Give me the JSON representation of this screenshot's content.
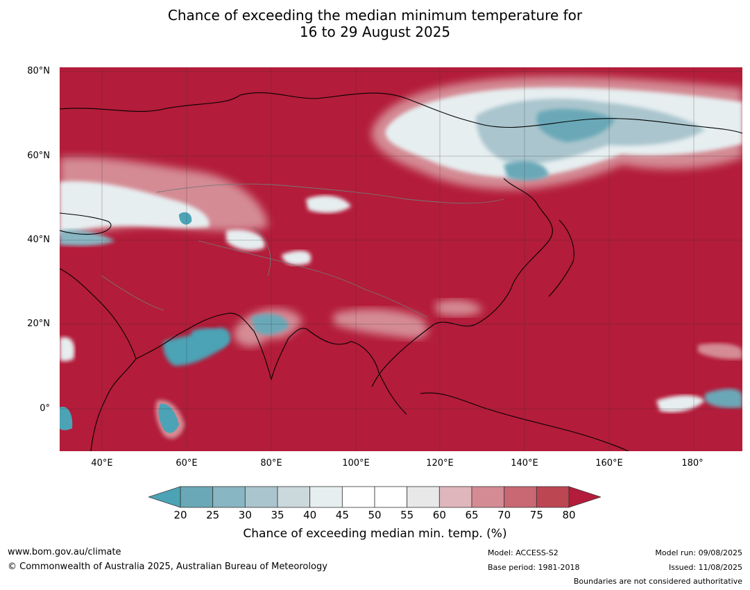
{
  "title": {
    "line1": "Chance of exceeding the median minimum temperature for",
    "line2": "16 to 29 August 2025"
  },
  "map": {
    "lat_labels": [
      "80°N",
      "60°N",
      "40°N",
      "20°N",
      "0°"
    ],
    "lon_labels": [
      "40°E",
      "60°E",
      "80°E",
      "100°E",
      "120°E",
      "140°E",
      "160°E",
      "180°"
    ],
    "lat_range": [
      -10,
      80
    ],
    "lon_range": [
      30,
      191
    ],
    "gridlines": true
  },
  "colorbar": {
    "ticks": [
      "20",
      "25",
      "30",
      "35",
      "40",
      "45",
      "50",
      "55",
      "60",
      "65",
      "70",
      "75",
      "80"
    ],
    "colors": [
      "#6aa8b7",
      "#88b6c2",
      "#aac5cd",
      "#cbd8dc",
      "#e6eef0",
      "#ffffff",
      "#ffffff",
      "#e8e8e8",
      "#dfb6bc",
      "#d48b94",
      "#c96772",
      "#bd4653"
    ],
    "under_color": "#4ba3b5",
    "over_color": "#b31c3a",
    "label": "Chance of exceeding median min. temp. (%)"
  },
  "footer": {
    "website": "www.bom.gov.au/climate",
    "copyright": "© Commonwealth of Australia 2025, Australian Bureau of Meteorology",
    "model": "Model: ACCESS-S2",
    "base_period": "Base period: 1981-2018",
    "model_run": "Model run: 09/08/2025",
    "issued": "Issued: 11/08/2025",
    "disclaimer": "Boundaries are not considered authoritative"
  }
}
